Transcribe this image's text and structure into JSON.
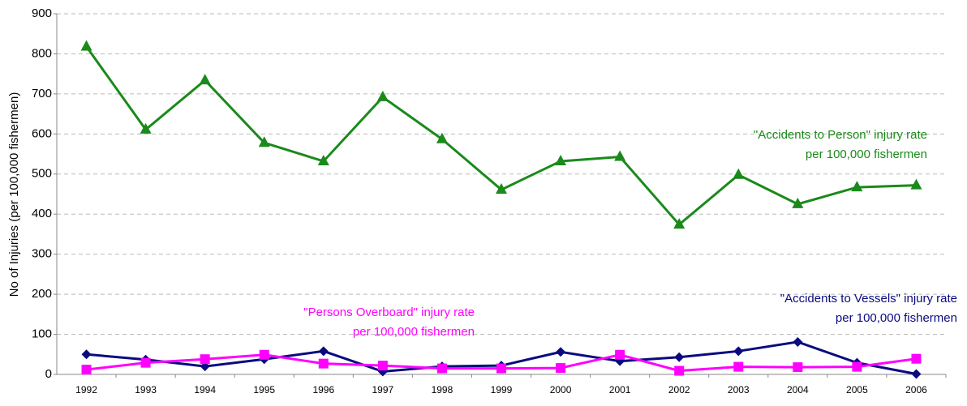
{
  "chart_data": {
    "type": "line",
    "y_label": "No of Injuries (per 100,000 fishermen)",
    "categories": [
      "1992",
      "1993",
      "1994",
      "1995",
      "1996",
      "1997",
      "1998",
      "1999",
      "2000",
      "2001",
      "2002",
      "2003",
      "2004",
      "2005",
      "2006"
    ],
    "series": [
      {
        "name": "\"Accidents to Person\" injury rate",
        "name_line2": "per 100,000 fishermen",
        "color": "#1a8a1a",
        "marker": "triangle",
        "values": [
          818,
          611,
          734,
          578,
          532,
          692,
          587,
          461,
          532,
          543,
          374,
          498,
          425,
          467,
          472
        ]
      },
      {
        "name": "\"Accidents to Vessels\" injury rate",
        "name_line2": "per 100,000 fishermen",
        "color": "#0a0a80",
        "marker": "diamond",
        "values": [
          50,
          37,
          20,
          38,
          58,
          7,
          20,
          22,
          56,
          33,
          43,
          58,
          81,
          29,
          1
        ]
      },
      {
        "name": "\"Persons Overboard\" injury rate",
        "name_line2": "per 100,000 fishermen",
        "color": "#ff00ff",
        "marker": "square",
        "values": [
          12,
          29,
          38,
          49,
          27,
          22,
          15,
          15,
          16,
          49,
          9,
          19,
          18,
          19,
          39
        ]
      }
    ],
    "ylim": [
      0,
      900
    ],
    "yticks": [
      0,
      100,
      200,
      300,
      400,
      500,
      600,
      700,
      800,
      900
    ],
    "grid": true
  }
}
